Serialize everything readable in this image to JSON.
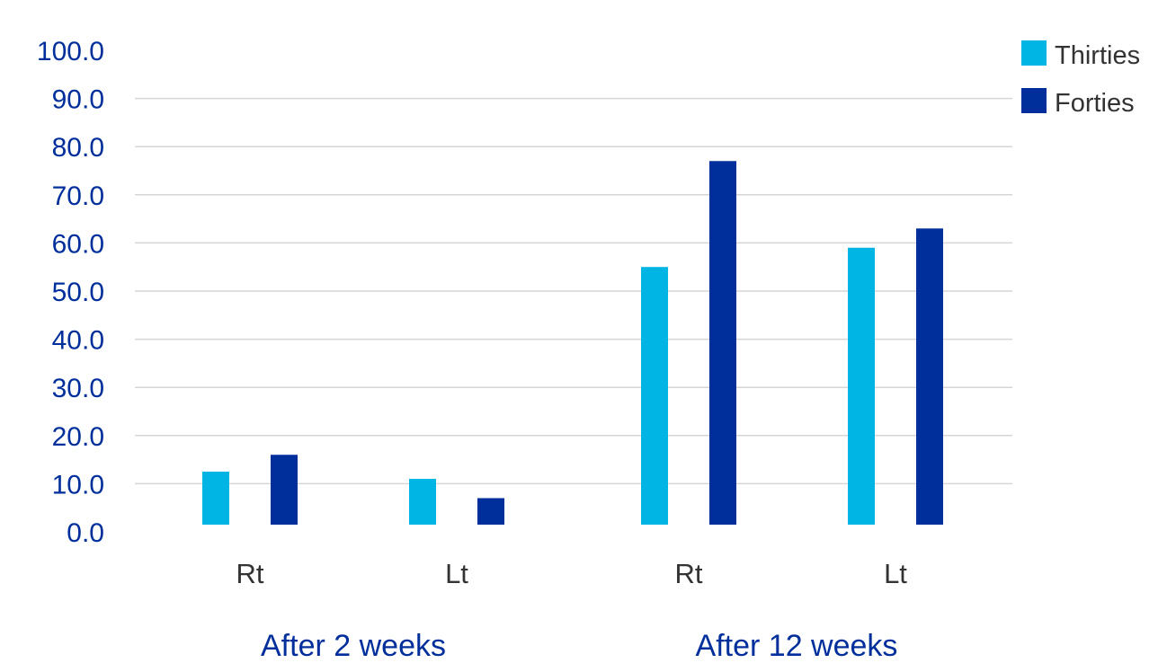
{
  "chart_data": {
    "type": "bar",
    "title": "",
    "xlabel": "",
    "ylabel": "",
    "ylim": [
      0,
      100
    ],
    "y_ticks": [
      "0.0",
      "10.0",
      "20.0",
      "30.0",
      "40.0",
      "50.0",
      "60.0",
      "70.0",
      "80.0",
      "90.0",
      "100.0"
    ],
    "grid": true,
    "legend_position": "top-right",
    "groups": [
      {
        "label": "After 2 weeks",
        "categories": [
          "Rt",
          "Lt"
        ]
      },
      {
        "label": "After 12 weeks",
        "categories": [
          "Rt",
          "Lt"
        ]
      }
    ],
    "categories": [
      "Rt",
      "Lt",
      "Rt",
      "Lt"
    ],
    "series": [
      {
        "name": "Thirties",
        "color": "#00b4e4",
        "values": [
          12.5,
          11,
          55,
          59
        ]
      },
      {
        "name": "Forties",
        "color": "#002f9c",
        "values": [
          16,
          7,
          77,
          63
        ]
      }
    ]
  }
}
